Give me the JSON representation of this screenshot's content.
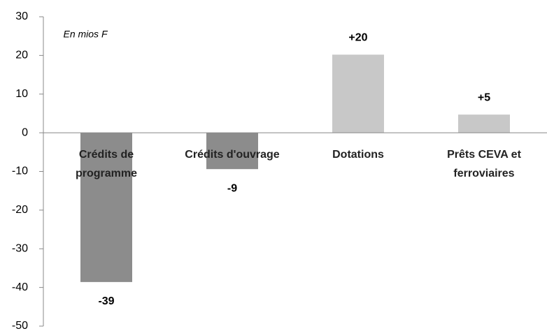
{
  "chart_data": {
    "type": "bar",
    "annotation": "En mios F",
    "categories": [
      "Crédits de programme",
      "Crédits d'ouvrage",
      "Dotations",
      "Prêts CEVA et ferroviaires"
    ],
    "values": [
      -38.6,
      -9.4,
      20.2,
      4.7
    ],
    "value_labels": [
      "-39",
      "-9",
      "+20",
      "+5"
    ],
    "colors": [
      "#8c8c8c",
      "#8c8c8c",
      "#c8c8c8",
      "#c8c8c8"
    ],
    "ylim": [
      -50,
      30
    ],
    "yticks": [
      -50,
      -40,
      -30,
      -20,
      -10,
      0,
      10,
      20,
      30
    ],
    "grid": false
  }
}
